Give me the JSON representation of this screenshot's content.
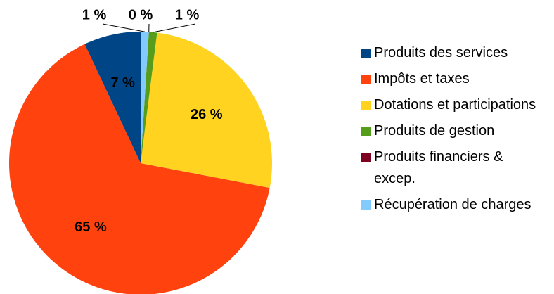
{
  "chart_data": {
    "type": "pie",
    "categories": [
      "Produits des services",
      "Impôts et taxes",
      "Dotations et participations",
      "Produits de gestion",
      "Produits financiers & excep.",
      "Récupération de charges"
    ],
    "values": [
      7,
      65,
      26,
      1,
      0,
      1
    ],
    "value_labels": [
      "7 %",
      "65 %",
      "26 %",
      "1 %",
      "0 %",
      "1 %"
    ],
    "colors": [
      "#004586",
      "#ff420e",
      "#ffd320",
      "#579d1c",
      "#7e0021",
      "#83caff"
    ],
    "legend": "right"
  }
}
